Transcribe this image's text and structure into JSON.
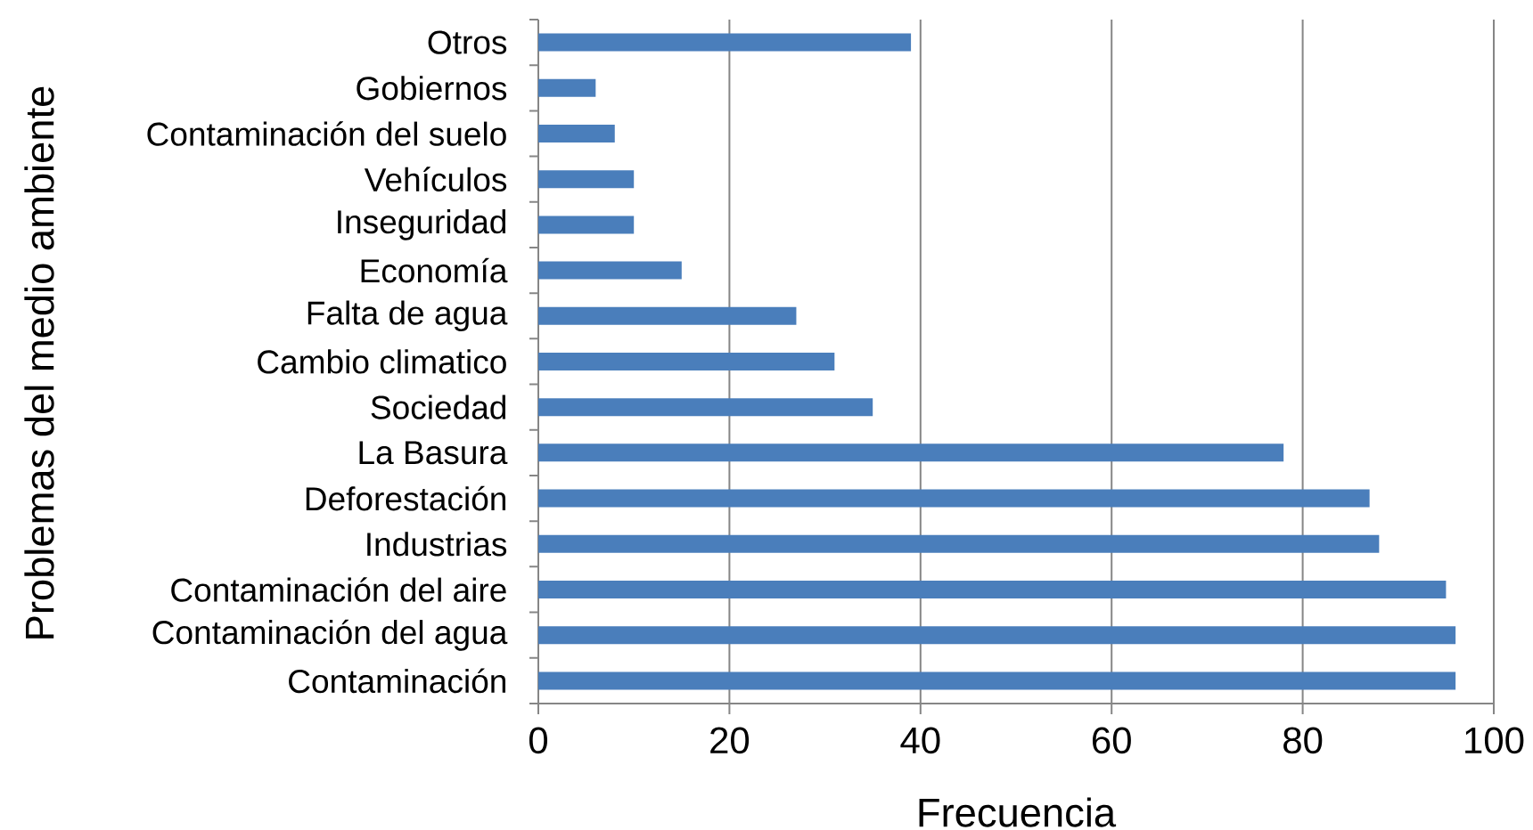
{
  "chart_data": {
    "type": "bar",
    "orientation": "horizontal",
    "xlabel": "Frecuencia",
    "ylabel": "Problemas del medio ambiente",
    "categories": [
      "Otros",
      "Gobiernos",
      "Contaminación del suelo",
      "Vehículos",
      "Inseguridad",
      "Economía",
      "Falta de agua",
      "Cambio climatico",
      "Sociedad",
      "La Basura",
      "Deforestación",
      "Industrias",
      "Contaminación del aire",
      "Contaminación del agua",
      "Contaminación"
    ],
    "values": [
      39,
      6,
      8,
      10,
      10,
      15,
      27,
      31,
      35,
      78,
      87,
      88,
      95,
      96,
      96
    ],
    "color": "#4a7ebb",
    "xlim": [
      0,
      100
    ],
    "xticks": [
      0,
      20,
      40,
      60,
      80,
      100
    ],
    "grid": "x"
  }
}
